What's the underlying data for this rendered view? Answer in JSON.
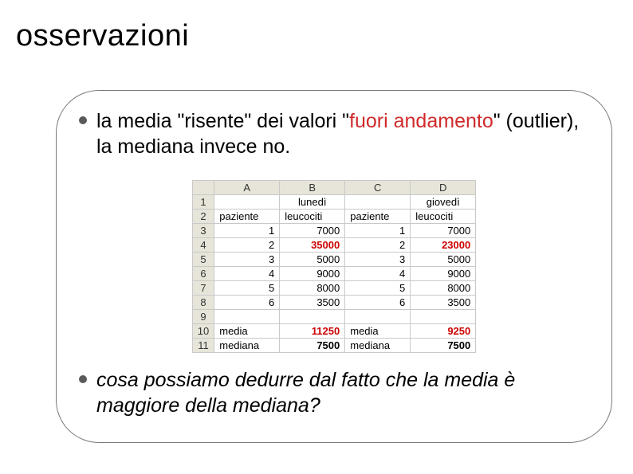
{
  "title": "osservazioni",
  "bullet1": {
    "pre": "la media \"risente\" dei valori \"",
    "hl": "fuori andamento",
    "post": "\" (outlier), la mediana invece  no."
  },
  "bullet2": "cosa possiamo dedurre dal fatto che la media è maggiore della mediana?",
  "sheet": {
    "colHeaders": [
      "A",
      "B",
      "C",
      "D"
    ],
    "rowHeaders": [
      "1",
      "2",
      "3",
      "4",
      "5",
      "6",
      "7",
      "8",
      "9",
      "10",
      "11"
    ],
    "header_bg": "#e7e5d9",
    "border_color": "#c9c9c9",
    "red_color": "#cc0000",
    "rows": [
      {
        "a": "",
        "b": "lunedì",
        "c": "",
        "d": "giovedì",
        "bctr": true,
        "dctr": true
      },
      {
        "a": "paziente",
        "b": "leucociti",
        "c": "paziente",
        "d": "leucociti",
        "atxt": true,
        "btxt": true,
        "ctxt": true,
        "dtxt": true
      },
      {
        "a": "1",
        "b": "7000",
        "c": "1",
        "d": "7000"
      },
      {
        "a": "2",
        "b": "35000",
        "c": "2",
        "d": "23000",
        "bred": true,
        "dred": true
      },
      {
        "a": "3",
        "b": "5000",
        "c": "3",
        "d": "5000"
      },
      {
        "a": "4",
        "b": "9000",
        "c": "4",
        "d": "9000"
      },
      {
        "a": "5",
        "b": "8000",
        "c": "5",
        "d": "8000"
      },
      {
        "a": "6",
        "b": "3500",
        "c": "6",
        "d": "3500"
      },
      {
        "a": "",
        "b": "",
        "c": "",
        "d": ""
      },
      {
        "a": "media",
        "b": "11250",
        "c": "media",
        "d": "9250",
        "atxt": true,
        "ctxt": true,
        "bred": true,
        "dred": true
      },
      {
        "a": "mediana",
        "b": "7500",
        "c": "mediana",
        "d": "7500",
        "atxt": true,
        "ctxt": true,
        "bbold": true,
        "dbold": true
      }
    ]
  }
}
